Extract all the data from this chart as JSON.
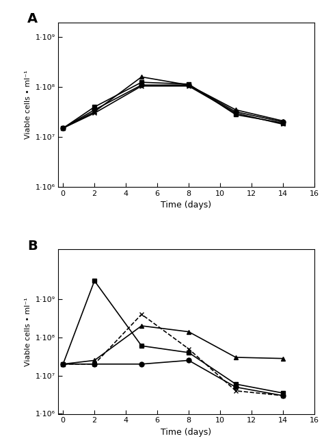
{
  "panel_A": {
    "label": "A",
    "time": [
      0,
      2,
      5,
      8,
      11,
      14
    ],
    "series": [
      {
        "marker": "o",
        "linestyle": "-",
        "values": [
          15000000.0,
          35000000.0,
          110000000.0,
          110000000.0,
          32000000.0,
          20000000.0
        ]
      },
      {
        "marker": "s",
        "linestyle": "-",
        "values": [
          15000000.0,
          40000000.0,
          125000000.0,
          115000000.0,
          28000000.0,
          19000000.0
        ]
      },
      {
        "marker": "^",
        "linestyle": "-",
        "values": [
          15000000.0,
          32000000.0,
          160000000.0,
          110000000.0,
          35000000.0,
          21000000.0
        ]
      },
      {
        "marker": "x",
        "linestyle": "-",
        "values": [
          15000000.0,
          30000000.0,
          105000000.0,
          105000000.0,
          30000000.0,
          18000000.0
        ]
      }
    ],
    "ylabel": "Viable cells • ml⁻¹",
    "xlabel": "Time (days)",
    "ylim": [
      1000000.0,
      2000000000.0
    ],
    "yticks": [
      1000000.0,
      10000000.0,
      100000000.0,
      1000000000.0
    ],
    "xlim": [
      -0.3,
      16
    ],
    "xticks": [
      0,
      2,
      4,
      6,
      8,
      10,
      12,
      14,
      16
    ]
  },
  "panel_B": {
    "label": "B",
    "time": [
      0,
      2,
      5,
      8,
      11,
      14
    ],
    "series": [
      {
        "marker": "o",
        "linestyle": "-",
        "values": [
          20000000.0,
          20000000.0,
          20000000.0,
          25000000.0,
          5000000.0,
          3000000.0
        ]
      },
      {
        "marker": "s",
        "linestyle": "-",
        "values": [
          20000000.0,
          3000000000.0,
          60000000.0,
          40000000.0,
          6000000.0,
          3500000.0
        ]
      },
      {
        "marker": "^",
        "linestyle": "-",
        "values": [
          20000000.0,
          25000000.0,
          200000000.0,
          140000000.0,
          30000000.0,
          28000000.0
        ]
      },
      {
        "marker": "x",
        "linestyle": "--",
        "values": [
          20000000.0,
          20000000.0,
          400000000.0,
          50000000.0,
          4000000.0,
          3000000.0
        ]
      }
    ],
    "ylabel": "Viable cells • ml⁻¹",
    "xlabel": "Time (days)",
    "ylim": [
      1000000.0,
      20000000000.0
    ],
    "yticks": [
      1000000.0,
      10000000.0,
      100000000.0,
      1000000000.0
    ],
    "xlim": [
      -0.3,
      16
    ],
    "xticks": [
      0,
      2,
      4,
      6,
      8,
      10,
      12,
      14,
      16
    ]
  },
  "line_color": "#000000",
  "markersize": 5,
  "linewidth": 1.2
}
